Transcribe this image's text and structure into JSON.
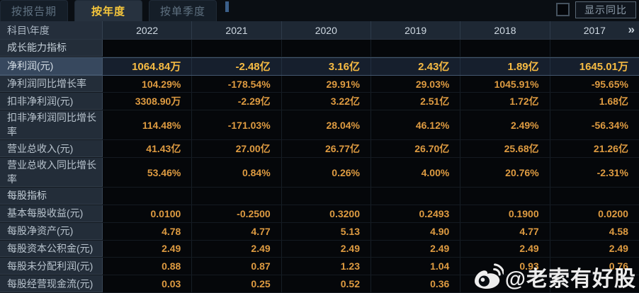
{
  "tabs": [
    {
      "label": "按报告期",
      "active": false
    },
    {
      "label": "按年度",
      "active": true
    },
    {
      "label": "按单季度",
      "active": false
    }
  ],
  "controls": {
    "show_yoy_label": "显示同比",
    "checkbox_checked": false
  },
  "table": {
    "corner_label": "科目\\年度",
    "years": [
      "2022",
      "2021",
      "2020",
      "2019",
      "2018",
      "2017"
    ],
    "more_icon": "»",
    "rows": [
      {
        "type": "section",
        "label": "成长能力指标",
        "values": [
          "",
          "",
          "",
          "",
          "",
          ""
        ]
      },
      {
        "type": "highlight",
        "label": "净利润(元)",
        "values": [
          "1064.84万",
          "-2.48亿",
          "3.16亿",
          "2.43亿",
          "1.89亿",
          "1645.01万"
        ]
      },
      {
        "type": "data",
        "label": "净利润同比增长率",
        "values": [
          "104.29%",
          "-178.54%",
          "29.91%",
          "29.03%",
          "1045.91%",
          "-95.65%"
        ]
      },
      {
        "type": "data",
        "label": "扣非净利润(元)",
        "values": [
          "3308.90万",
          "-2.29亿",
          "3.22亿",
          "2.51亿",
          "1.72亿",
          "1.68亿"
        ]
      },
      {
        "type": "data",
        "label": "扣非净利润同比增长率",
        "values": [
          "114.48%",
          "-171.03%",
          "28.04%",
          "46.12%",
          "2.49%",
          "-56.34%"
        ]
      },
      {
        "type": "data",
        "label": "营业总收入(元)",
        "values": [
          "41.43亿",
          "27.00亿",
          "26.77亿",
          "26.70亿",
          "25.68亿",
          "21.26亿"
        ]
      },
      {
        "type": "data",
        "label": "营业总收入同比增长率",
        "values": [
          "53.46%",
          "0.84%",
          "0.26%",
          "4.00%",
          "20.76%",
          "-2.31%"
        ]
      },
      {
        "type": "section",
        "label": "每股指标",
        "values": [
          "",
          "",
          "",
          "",
          "",
          ""
        ]
      },
      {
        "type": "data",
        "label": "基本每股收益(元)",
        "values": [
          "0.0100",
          "-0.2500",
          "0.3200",
          "0.2493",
          "0.1900",
          "0.0200"
        ]
      },
      {
        "type": "data",
        "label": "每股净资产(元)",
        "values": [
          "4.78",
          "4.77",
          "5.13",
          "4.90",
          "4.77",
          "4.58"
        ]
      },
      {
        "type": "data",
        "label": "每股资本公积金(元)",
        "values": [
          "2.49",
          "2.49",
          "2.49",
          "2.49",
          "2.49",
          "2.49"
        ]
      },
      {
        "type": "data",
        "label": "每股未分配利润(元)",
        "values": [
          "0.88",
          "0.87",
          "1.23",
          "1.04",
          "0.93",
          "0.76"
        ]
      },
      {
        "type": "data",
        "label": "每股经营现金流(元)",
        "values": [
          "0.03",
          "0.25",
          "0.52",
          "0.36",
          "",
          ""
        ]
      }
    ]
  },
  "watermark": {
    "text": "@老索有好股",
    "icon": "weibo-icon"
  },
  "colors": {
    "accent_gold": "#f5c63c",
    "value_orange": "#de9b41",
    "highlight_value_gold": "#f6bb43",
    "highlight_label_bg": "#37485e",
    "label_column_bg": "#232d39",
    "header_bg": "#1e2834",
    "page_bg": "#0a0e13"
  }
}
